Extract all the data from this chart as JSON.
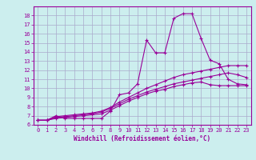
{
  "xlabel": "Windchill (Refroidissement éolien,°C)",
  "ylabel": "",
  "x_values": [
    0,
    1,
    2,
    3,
    4,
    5,
    6,
    7,
    8,
    9,
    10,
    11,
    12,
    13,
    14,
    15,
    16,
    17,
    18,
    19,
    20,
    21,
    22,
    23
  ],
  "line1": [
    6.5,
    6.5,
    7.0,
    6.7,
    6.7,
    6.7,
    6.7,
    6.7,
    7.5,
    9.3,
    9.5,
    10.5,
    15.3,
    13.9,
    13.9,
    17.7,
    18.2,
    18.2,
    15.5,
    13.1,
    12.7,
    11.0,
    10.5,
    10.4
  ],
  "line2": [
    6.5,
    6.5,
    6.9,
    7.0,
    7.1,
    7.2,
    7.3,
    7.5,
    7.9,
    8.5,
    9.0,
    9.5,
    10.0,
    10.4,
    10.8,
    11.2,
    11.5,
    11.7,
    11.9,
    12.1,
    12.3,
    12.5,
    12.5,
    12.5
  ],
  "line3": [
    6.5,
    6.5,
    6.8,
    6.9,
    7.0,
    7.1,
    7.2,
    7.4,
    7.8,
    8.3,
    8.8,
    9.2,
    9.6,
    9.9,
    10.2,
    10.5,
    10.7,
    10.9,
    11.1,
    11.3,
    11.5,
    11.7,
    11.5,
    11.2
  ],
  "line4": [
    6.5,
    6.5,
    6.7,
    6.8,
    6.9,
    7.0,
    7.1,
    7.2,
    7.6,
    8.1,
    8.6,
    9.0,
    9.4,
    9.7,
    9.9,
    10.2,
    10.4,
    10.6,
    10.7,
    10.4,
    10.3,
    10.3,
    10.3,
    10.3
  ],
  "line_color": "#990099",
  "bg_color": "#cceeee",
  "grid_color": "#aaaacc",
  "ylim": [
    6,
    19
  ],
  "xlim": [
    -0.5,
    23.5
  ],
  "yticks": [
    6,
    7,
    8,
    9,
    10,
    11,
    12,
    13,
    14,
    15,
    16,
    17,
    18
  ],
  "xticks": [
    0,
    1,
    2,
    3,
    4,
    5,
    6,
    7,
    8,
    9,
    10,
    11,
    12,
    13,
    14,
    15,
    16,
    17,
    18,
    19,
    20,
    21,
    22,
    23
  ],
  "tick_fontsize": 5.0,
  "xlabel_fontsize": 5.5
}
